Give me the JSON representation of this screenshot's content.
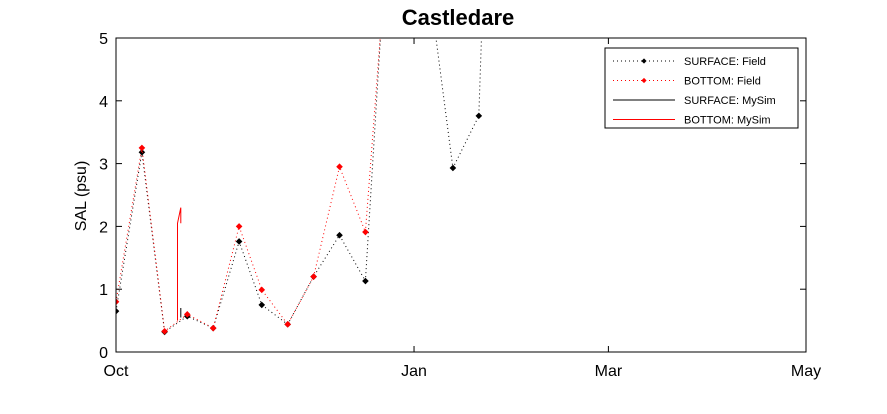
{
  "chart_data": {
    "type": "line",
    "title": "Castledare",
    "xlabel": "",
    "ylabel": "SAL (psu)",
    "ylim": [
      0,
      5
    ],
    "yticks": [
      0,
      1,
      2,
      3,
      4,
      5
    ],
    "xlim": [
      "2007-10-01",
      "2008-05-01"
    ],
    "xticks": [
      {
        "date": "2007-10-01",
        "label": "Oct"
      },
      {
        "date": "2008-01-01",
        "label": "Jan"
      },
      {
        "date": "2008-03-01",
        "label": "Mar"
      },
      {
        "date": "2008-05-01",
        "label": "May"
      }
    ],
    "grid": false,
    "legend_position": "top-right",
    "series": [
      {
        "name": "SURFACE: Field",
        "color": "#000000",
        "style": "dotted",
        "marker": "diamond",
        "points": [
          [
            "2007-10-01",
            0.65
          ],
          [
            "2007-10-09",
            3.18
          ],
          [
            "2007-10-16",
            0.32
          ],
          [
            "2007-10-23",
            0.57
          ],
          [
            "2007-10-31",
            0.38
          ],
          [
            "2007-11-08",
            1.76
          ],
          [
            "2007-11-15",
            0.75
          ],
          [
            "2007-11-23",
            0.44
          ],
          [
            "2007-12-01",
            1.2
          ],
          [
            "2007-12-09",
            1.86
          ],
          [
            "2007-12-17",
            1.13
          ],
          [
            "2007-12-22",
            5.3
          ],
          [
            "2008-01-07",
            5.3
          ],
          [
            "2008-01-13",
            2.93
          ],
          [
            "2008-01-21",
            3.76
          ],
          [
            "2008-01-22",
            5.3
          ]
        ]
      },
      {
        "name": "BOTTOM: Field",
        "color": "#ff0000",
        "style": "dotted",
        "marker": "diamond",
        "points": [
          [
            "2007-10-01",
            0.8
          ],
          [
            "2007-10-09",
            3.25
          ],
          [
            "2007-10-16",
            0.33
          ],
          [
            "2007-10-23",
            0.6
          ],
          [
            "2007-10-31",
            0.38
          ],
          [
            "2007-11-08",
            2.0
          ],
          [
            "2007-11-15",
            0.99
          ],
          [
            "2007-11-23",
            0.44
          ],
          [
            "2007-12-01",
            1.2
          ],
          [
            "2007-12-09",
            2.95
          ],
          [
            "2007-12-17",
            1.91
          ],
          [
            "2007-12-22",
            5.3
          ]
        ]
      },
      {
        "name": "SURFACE: MySim",
        "color": "#000000",
        "style": "solid",
        "marker": "none",
        "points": [
          [
            "2007-10-21",
            0.55
          ],
          [
            "2007-10-21",
            0.7
          ]
        ]
      },
      {
        "name": "BOTTOM: MySim",
        "color": "#ff0000",
        "style": "solid",
        "marker": "none",
        "points": [
          [
            "2007-10-20",
            0.5
          ],
          [
            "2007-10-20",
            2.05
          ],
          [
            "2007-10-21",
            2.3
          ],
          [
            "2007-10-21",
            2.05
          ]
        ]
      }
    ]
  }
}
